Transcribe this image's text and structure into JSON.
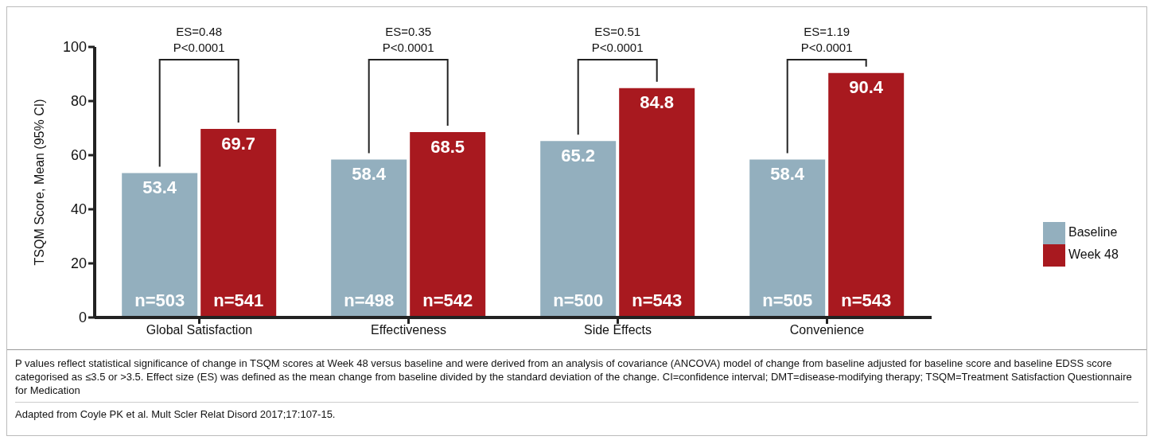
{
  "chart_data": {
    "type": "bar",
    "ylabel": "TSQM Score, Mean (95% CI)",
    "categories": [
      "Global Satisfaction",
      "Effectiveness",
      "Side Effects",
      "Convenience"
    ],
    "series": [
      {
        "name": "Baseline",
        "color": "#93afbe",
        "values": [
          53.4,
          58.4,
          65.2,
          58.4
        ]
      },
      {
        "name": "Week 48",
        "color": "#a8191f",
        "values": [
          69.7,
          68.5,
          84.8,
          90.4
        ]
      }
    ],
    "ylim": [
      0,
      100
    ],
    "yticks": [
      0,
      20,
      40,
      60,
      80,
      100
    ],
    "grid": false,
    "legend": "right",
    "data_labels": true,
    "annotations": [
      "ES=0.48\nP<0.0001",
      "ES=0.35\nP<0.0001",
      "ES=0.51\nP<0.0001",
      "ES=1.19\nP<0.0001",
      {
        "text": "n=503",
        "x": "Global Satisfaction",
        "y": 0
      },
      {
        "text": "n=541",
        "x": "Global Satisfaction",
        "y": 0
      },
      {
        "text": "n=498",
        "x": "Effectiveness",
        "y": 0
      },
      {
        "text": "n=542",
        "x": "Effectiveness",
        "y": 0
      },
      {
        "text": "n=500",
        "x": "Side Effects",
        "y": 0
      },
      {
        "text": "n=543",
        "x": "Side Effects",
        "y": 0
      },
      {
        "text": "n=505",
        "x": "Convenience",
        "y": 0
      },
      {
        "text": "n=543",
        "x": "Convenience",
        "y": 0
      },
      "P values reflect statistical significance of change in TSQM scores at Week 48 versus baseline and were derived from an analysis of covariance (ANCOVA) model of change from baseline adjusted for baseline score and baseline EDSS score categorised as ≤3.5 or >3.5. Effect size (ES) was defined as the mean change from baseline divided by the standard deviation of the change. CI=confidence interval; DMT=disease-modifying therapy; TSQM=Treatment Satisfaction Questionnaire for Medication",
      "Adapted from Coyle PK et al. Mult Scler Relat Disord 2017;17:107-15."
    ]
  }
}
